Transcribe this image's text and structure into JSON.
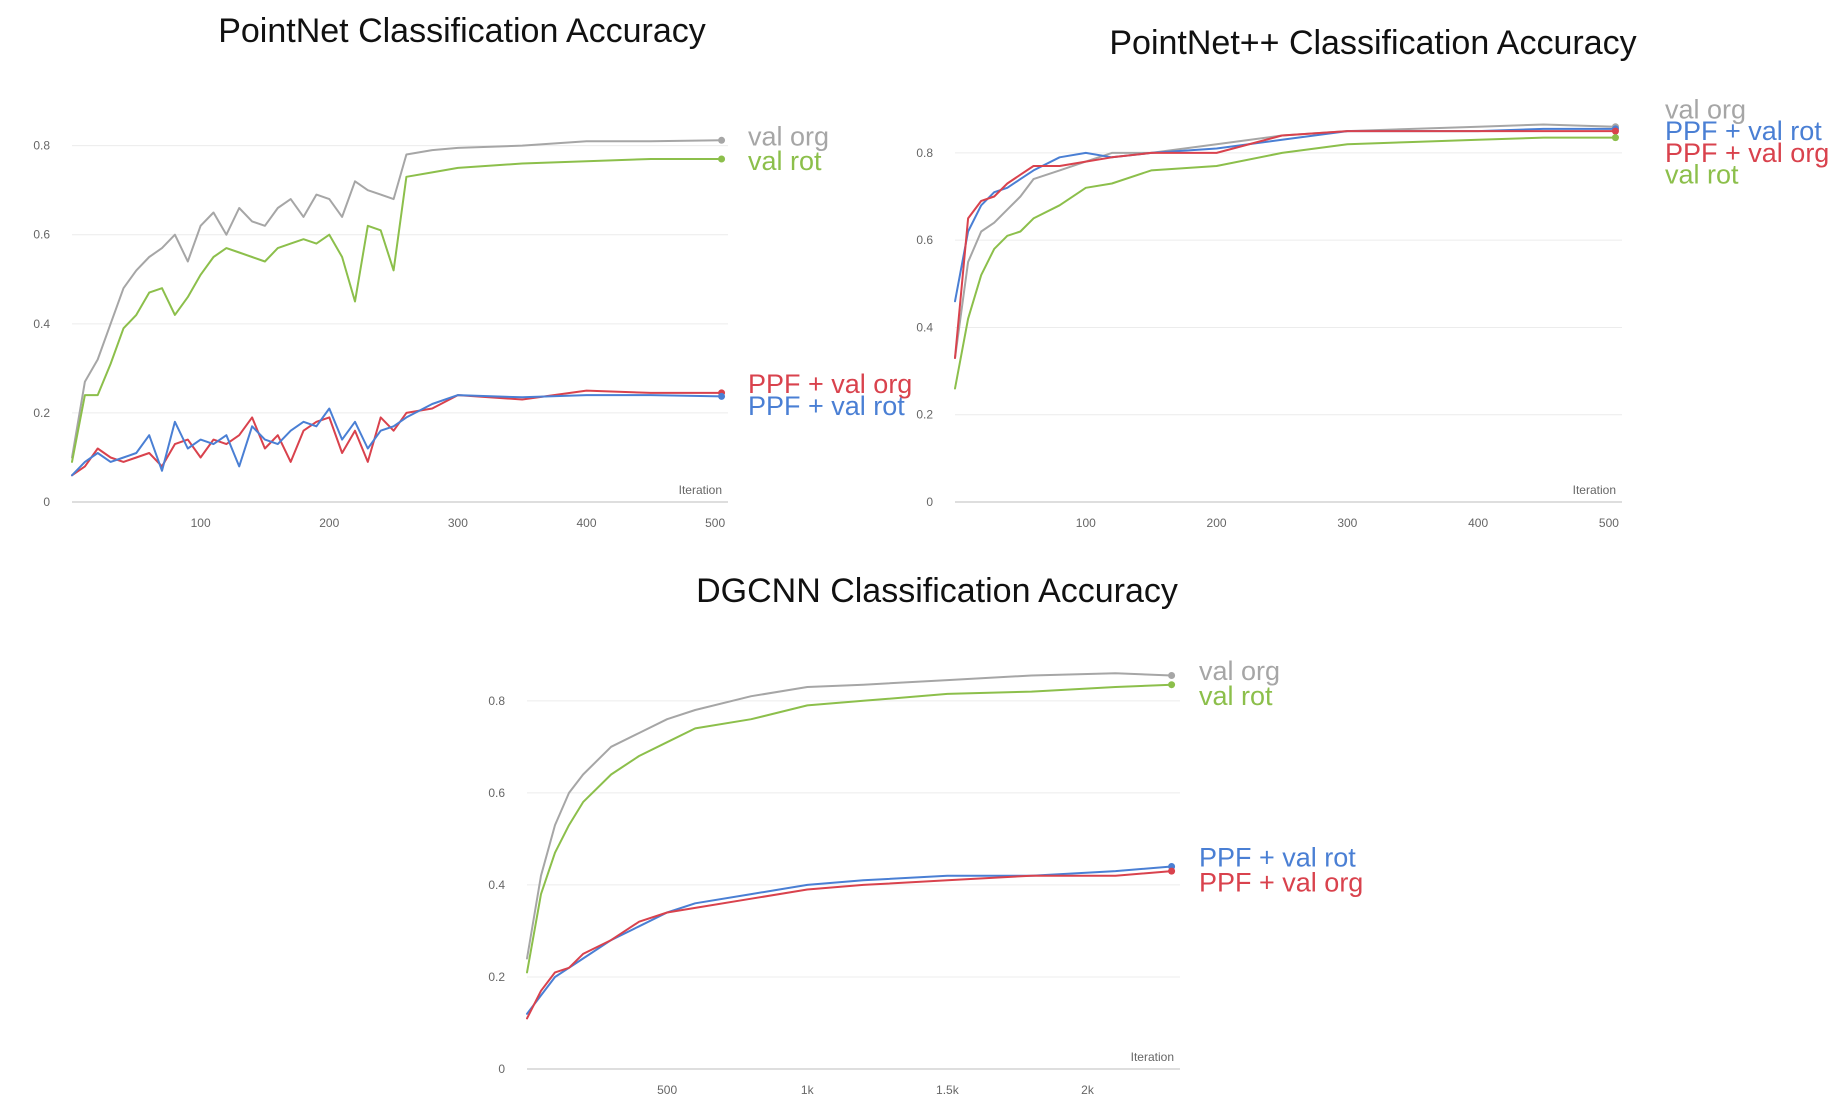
{
  "chart_data": [
    {
      "type": "line",
      "title": "PointNet Classification Accuracy",
      "xlabel": "Iteration",
      "ylabel": "",
      "xlim": [
        0,
        510
      ],
      "ylim": [
        0,
        0.8
      ],
      "xticks": [
        {
          "v": 100,
          "label": "100"
        },
        {
          "v": 200,
          "label": "200"
        },
        {
          "v": 300,
          "label": "300"
        },
        {
          "v": 400,
          "label": "400"
        },
        {
          "v": 500,
          "label": "500"
        }
      ],
      "yticks": [
        {
          "v": 0,
          "label": "0"
        },
        {
          "v": 0.2,
          "label": "0.2"
        },
        {
          "v": 0.4,
          "label": "0.4"
        },
        {
          "v": 0.6,
          "label": "0.6"
        },
        {
          "v": 0.8,
          "label": "0.8"
        }
      ],
      "grid": true,
      "legend_position": "right",
      "series": [
        {
          "name": "val org",
          "color": "#a6a6a6",
          "labelY": 0.82,
          "x": [
            0,
            10,
            20,
            30,
            40,
            50,
            60,
            70,
            80,
            90,
            100,
            110,
            120,
            130,
            140,
            150,
            160,
            170,
            180,
            190,
            200,
            210,
            220,
            230,
            240,
            250,
            260,
            280,
            300,
            350,
            400,
            450,
            505
          ],
          "y": [
            0.1,
            0.27,
            0.32,
            0.4,
            0.48,
            0.52,
            0.55,
            0.57,
            0.6,
            0.54,
            0.62,
            0.65,
            0.6,
            0.66,
            0.63,
            0.62,
            0.66,
            0.68,
            0.64,
            0.69,
            0.68,
            0.64,
            0.72,
            0.7,
            0.69,
            0.68,
            0.78,
            0.79,
            0.795,
            0.8,
            0.81,
            0.81,
            0.812
          ]
        },
        {
          "name": "val rot",
          "color": "#8cbf4b",
          "labelY": 0.765,
          "x": [
            0,
            10,
            20,
            30,
            40,
            50,
            60,
            70,
            80,
            90,
            100,
            110,
            120,
            130,
            140,
            150,
            160,
            170,
            180,
            190,
            200,
            210,
            220,
            230,
            240,
            250,
            260,
            280,
            300,
            350,
            400,
            450,
            505
          ],
          "y": [
            0.09,
            0.24,
            0.24,
            0.31,
            0.39,
            0.42,
            0.47,
            0.48,
            0.42,
            0.46,
            0.51,
            0.55,
            0.57,
            0.56,
            0.55,
            0.54,
            0.57,
            0.58,
            0.59,
            0.58,
            0.6,
            0.55,
            0.45,
            0.62,
            0.61,
            0.52,
            0.73,
            0.74,
            0.75,
            0.76,
            0.765,
            0.77,
            0.77
          ]
        },
        {
          "name": "PPF + val org",
          "color": "#d9424d",
          "labelY": 0.265,
          "x": [
            0,
            10,
            20,
            30,
            40,
            50,
            60,
            70,
            80,
            90,
            100,
            110,
            120,
            130,
            140,
            150,
            160,
            170,
            180,
            190,
            200,
            210,
            220,
            230,
            240,
            250,
            260,
            280,
            300,
            350,
            400,
            450,
            505
          ],
          "y": [
            0.06,
            0.08,
            0.12,
            0.1,
            0.09,
            0.1,
            0.11,
            0.08,
            0.13,
            0.14,
            0.1,
            0.14,
            0.13,
            0.15,
            0.19,
            0.12,
            0.15,
            0.09,
            0.16,
            0.18,
            0.19,
            0.11,
            0.16,
            0.09,
            0.19,
            0.16,
            0.2,
            0.21,
            0.24,
            0.23,
            0.25,
            0.245,
            0.245
          ]
        },
        {
          "name": "PPF + val rot",
          "color": "#4a7fd4",
          "labelY": 0.215,
          "x": [
            0,
            10,
            20,
            30,
            40,
            50,
            60,
            70,
            80,
            90,
            100,
            110,
            120,
            130,
            140,
            150,
            160,
            170,
            180,
            190,
            200,
            210,
            220,
            230,
            240,
            250,
            260,
            280,
            300,
            350,
            400,
            450,
            505
          ],
          "y": [
            0.06,
            0.09,
            0.11,
            0.09,
            0.1,
            0.11,
            0.15,
            0.07,
            0.18,
            0.12,
            0.14,
            0.13,
            0.15,
            0.08,
            0.17,
            0.14,
            0.13,
            0.16,
            0.18,
            0.17,
            0.21,
            0.14,
            0.18,
            0.12,
            0.16,
            0.17,
            0.19,
            0.22,
            0.24,
            0.235,
            0.24,
            0.24,
            0.237
          ]
        }
      ]
    },
    {
      "type": "line",
      "title": "PointNet++ Classification Accuracy",
      "xlabel": "Iteration",
      "ylabel": "",
      "xlim": [
        0,
        510
      ],
      "ylim": [
        0,
        0.8
      ],
      "xticks": [
        {
          "v": 100,
          "label": "100"
        },
        {
          "v": 200,
          "label": "200"
        },
        {
          "v": 300,
          "label": "300"
        },
        {
          "v": 400,
          "label": "400"
        },
        {
          "v": 500,
          "label": "500"
        }
      ],
      "yticks": [
        {
          "v": 0,
          "label": "0"
        },
        {
          "v": 0.2,
          "label": "0.2"
        },
        {
          "v": 0.4,
          "label": "0.4"
        },
        {
          "v": 0.6,
          "label": "0.6"
        },
        {
          "v": 0.8,
          "label": "0.8"
        }
      ],
      "grid": true,
      "legend_position": "right",
      "series": [
        {
          "name": "val org",
          "color": "#a6a6a6",
          "labelY": 0.9,
          "x": [
            0,
            10,
            20,
            30,
            40,
            50,
            60,
            80,
            100,
            120,
            150,
            200,
            250,
            300,
            350,
            400,
            450,
            505
          ],
          "y": [
            0.33,
            0.55,
            0.62,
            0.64,
            0.67,
            0.7,
            0.74,
            0.76,
            0.78,
            0.8,
            0.8,
            0.82,
            0.84,
            0.85,
            0.855,
            0.86,
            0.865,
            0.86
          ]
        },
        {
          "name": "PPF + val rot",
          "color": "#4a7fd4",
          "labelY": 0.85,
          "x": [
            0,
            10,
            20,
            30,
            40,
            50,
            60,
            80,
            100,
            120,
            150,
            200,
            250,
            300,
            350,
            400,
            450,
            505
          ],
          "y": [
            0.46,
            0.62,
            0.68,
            0.71,
            0.72,
            0.74,
            0.76,
            0.79,
            0.8,
            0.79,
            0.8,
            0.81,
            0.83,
            0.85,
            0.85,
            0.85,
            0.855,
            0.855
          ]
        },
        {
          "name": "PPF + val org",
          "color": "#d9424d",
          "labelY": 0.8,
          "x": [
            0,
            10,
            20,
            30,
            40,
            50,
            60,
            80,
            100,
            120,
            150,
            200,
            250,
            300,
            350,
            400,
            450,
            505
          ],
          "y": [
            0.33,
            0.65,
            0.69,
            0.7,
            0.73,
            0.75,
            0.77,
            0.77,
            0.78,
            0.79,
            0.8,
            0.8,
            0.84,
            0.85,
            0.85,
            0.85,
            0.85,
            0.85
          ]
        },
        {
          "name": "val rot",
          "color": "#8cbf4b",
          "labelY": 0.75,
          "x": [
            0,
            10,
            20,
            30,
            40,
            50,
            60,
            80,
            100,
            120,
            150,
            200,
            250,
            300,
            350,
            400,
            450,
            505
          ],
          "y": [
            0.26,
            0.42,
            0.52,
            0.58,
            0.61,
            0.62,
            0.65,
            0.68,
            0.72,
            0.73,
            0.76,
            0.77,
            0.8,
            0.82,
            0.825,
            0.83,
            0.835,
            0.835
          ]
        }
      ]
    },
    {
      "type": "line",
      "title": "DGCNN Classification Accuracy",
      "xlabel": "Iteration",
      "ylabel": "",
      "xlim": [
        0,
        2330
      ],
      "ylim": [
        0,
        0.8
      ],
      "xticks": [
        {
          "v": 500,
          "label": "500"
        },
        {
          "v": 1000,
          "label": "1k"
        },
        {
          "v": 1500,
          "label": "1.5k"
        },
        {
          "v": 2000,
          "label": "2k"
        }
      ],
      "yticks": [
        {
          "v": 0,
          "label": "0"
        },
        {
          "v": 0.2,
          "label": "0.2"
        },
        {
          "v": 0.4,
          "label": "0.4"
        },
        {
          "v": 0.6,
          "label": "0.6"
        },
        {
          "v": 0.8,
          "label": "0.8"
        }
      ],
      "grid": true,
      "legend_position": "right",
      "series": [
        {
          "name": "val org",
          "color": "#a6a6a6",
          "labelY": 0.865,
          "x": [
            0,
            50,
            100,
            150,
            200,
            300,
            400,
            500,
            600,
            800,
            1000,
            1200,
            1500,
            1800,
            2100,
            2300
          ],
          "y": [
            0.24,
            0.42,
            0.53,
            0.6,
            0.64,
            0.7,
            0.73,
            0.76,
            0.78,
            0.81,
            0.83,
            0.835,
            0.845,
            0.855,
            0.86,
            0.855
          ]
        },
        {
          "name": "val rot",
          "color": "#8cbf4b",
          "labelY": 0.81,
          "x": [
            0,
            50,
            100,
            150,
            200,
            300,
            400,
            500,
            600,
            800,
            1000,
            1200,
            1500,
            1800,
            2100,
            2300
          ],
          "y": [
            0.21,
            0.38,
            0.47,
            0.53,
            0.58,
            0.64,
            0.68,
            0.71,
            0.74,
            0.76,
            0.79,
            0.8,
            0.815,
            0.82,
            0.83,
            0.835
          ]
        },
        {
          "name": "PPF + val rot",
          "color": "#4a7fd4",
          "labelY": 0.46,
          "x": [
            0,
            50,
            100,
            150,
            200,
            300,
            400,
            500,
            600,
            800,
            1000,
            1200,
            1500,
            1800,
            2100,
            2300
          ],
          "y": [
            0.12,
            0.16,
            0.2,
            0.22,
            0.24,
            0.28,
            0.31,
            0.34,
            0.36,
            0.38,
            0.4,
            0.41,
            0.42,
            0.42,
            0.43,
            0.44
          ]
        },
        {
          "name": "PPF + val org",
          "color": "#d9424d",
          "labelY": 0.405,
          "x": [
            0,
            50,
            100,
            150,
            200,
            300,
            400,
            500,
            600,
            800,
            1000,
            1200,
            1500,
            1800,
            2100,
            2300
          ],
          "y": [
            0.11,
            0.17,
            0.21,
            0.22,
            0.25,
            0.28,
            0.32,
            0.34,
            0.35,
            0.37,
            0.39,
            0.4,
            0.41,
            0.42,
            0.42,
            0.43
          ]
        }
      ]
    }
  ]
}
